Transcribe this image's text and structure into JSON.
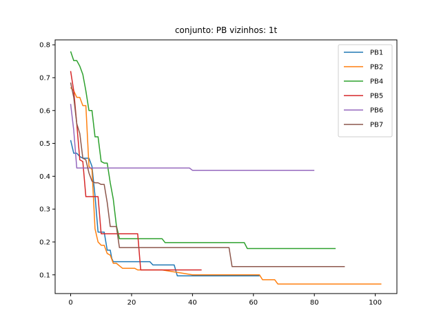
{
  "chart_data": {
    "type": "line",
    "title": "conjunto: PB vizinhos: 1t",
    "xlabel": "",
    "ylabel": "",
    "xlim": [
      -5.1,
      107.1
    ],
    "ylim": [
      0.043,
      0.815
    ],
    "xticks": [
      0,
      20,
      40,
      60,
      80,
      100
    ],
    "yticks": [
      0.1,
      0.2,
      0.3,
      0.4,
      0.5,
      0.6,
      0.7,
      0.8
    ],
    "ytick_labels": [
      "0.1",
      "0.2",
      "0.3",
      "0.4",
      "0.5",
      "0.6",
      "0.7",
      "0.8"
    ],
    "xtick_labels": [
      "0",
      "20",
      "40",
      "60",
      "80",
      "100"
    ],
    "grid": false,
    "legend_position": "top-right",
    "series": [
      {
        "name": "PB1",
        "color": "#1f77b4",
        "points": [
          [
            0,
            0.51
          ],
          [
            1,
            0.47
          ],
          [
            2,
            0.47
          ],
          [
            3,
            0.46
          ],
          [
            4,
            0.455
          ],
          [
            5,
            0.455
          ],
          [
            6,
            0.455
          ],
          [
            7,
            0.43
          ],
          [
            8,
            0.34
          ],
          [
            9,
            0.23
          ],
          [
            10,
            0.23
          ],
          [
            11,
            0.23
          ],
          [
            12,
            0.175
          ],
          [
            13,
            0.175
          ],
          [
            13.5,
            0.15
          ],
          [
            14,
            0.14
          ],
          [
            20,
            0.14
          ],
          [
            26,
            0.14
          ],
          [
            27,
            0.13
          ],
          [
            34,
            0.13
          ],
          [
            35,
            0.097
          ],
          [
            45,
            0.097
          ],
          [
            62,
            0.097
          ]
        ]
      },
      {
        "name": "PB2",
        "color": "#ff7f0e",
        "points": [
          [
            0,
            0.67
          ],
          [
            1,
            0.66
          ],
          [
            2,
            0.64
          ],
          [
            3,
            0.64
          ],
          [
            4,
            0.615
          ],
          [
            5,
            0.615
          ],
          [
            6,
            0.43
          ],
          [
            7,
            0.42
          ],
          [
            8,
            0.24
          ],
          [
            9,
            0.2
          ],
          [
            10,
            0.19
          ],
          [
            11,
            0.19
          ],
          [
            12,
            0.165
          ],
          [
            13,
            0.16
          ],
          [
            14,
            0.135
          ],
          [
            15,
            0.135
          ],
          [
            17,
            0.12
          ],
          [
            21,
            0.12
          ],
          [
            22,
            0.115
          ],
          [
            30,
            0.115
          ],
          [
            40,
            0.1
          ],
          [
            50,
            0.1
          ],
          [
            62,
            0.1
          ],
          [
            63,
            0.085
          ],
          [
            67,
            0.085
          ],
          [
            68,
            0.072
          ],
          [
            102,
            0.072
          ]
        ]
      },
      {
        "name": "PB4",
        "color": "#2ca02c",
        "points": [
          [
            0,
            0.78
          ],
          [
            1,
            0.752
          ],
          [
            2,
            0.752
          ],
          [
            3,
            0.735
          ],
          [
            4,
            0.71
          ],
          [
            5,
            0.66
          ],
          [
            6,
            0.6
          ],
          [
            7,
            0.6
          ],
          [
            8,
            0.52
          ],
          [
            9,
            0.52
          ],
          [
            10,
            0.445
          ],
          [
            11,
            0.44
          ],
          [
            12,
            0.44
          ],
          [
            13,
            0.38
          ],
          [
            14,
            0.33
          ],
          [
            15,
            0.25
          ],
          [
            16,
            0.21
          ],
          [
            22,
            0.21
          ],
          [
            28,
            0.21
          ],
          [
            30,
            0.21
          ],
          [
            31,
            0.198
          ],
          [
            40,
            0.198
          ],
          [
            50,
            0.198
          ],
          [
            57,
            0.198
          ],
          [
            58,
            0.18
          ],
          [
            87,
            0.18
          ]
        ]
      },
      {
        "name": "PB5",
        "color": "#d62728",
        "points": [
          [
            0,
            0.72
          ],
          [
            1,
            0.66
          ],
          [
            2,
            0.56
          ],
          [
            3,
            0.45
          ],
          [
            4,
            0.445
          ],
          [
            5,
            0.338
          ],
          [
            6,
            0.338
          ],
          [
            7,
            0.338
          ],
          [
            8,
            0.338
          ],
          [
            9,
            0.338
          ],
          [
            10,
            0.225
          ],
          [
            11,
            0.225
          ],
          [
            15,
            0.225
          ],
          [
            20,
            0.225
          ],
          [
            22,
            0.225
          ],
          [
            23,
            0.115
          ],
          [
            30,
            0.115
          ],
          [
            40,
            0.115
          ],
          [
            43,
            0.115
          ]
        ]
      },
      {
        "name": "PB6",
        "color": "#9467bd",
        "points": [
          [
            0,
            0.62
          ],
          [
            1,
            0.54
          ],
          [
            2,
            0.425
          ],
          [
            3,
            0.425
          ],
          [
            10,
            0.425
          ],
          [
            20,
            0.425
          ],
          [
            30,
            0.425
          ],
          [
            39,
            0.425
          ],
          [
            40,
            0.418
          ],
          [
            50,
            0.418
          ],
          [
            60,
            0.418
          ],
          [
            80,
            0.418
          ]
        ]
      },
      {
        "name": "PB7",
        "color": "#8c564b",
        "points": [
          [
            0,
            0.685
          ],
          [
            1,
            0.64
          ],
          [
            2,
            0.56
          ],
          [
            3,
            0.53
          ],
          [
            4,
            0.455
          ],
          [
            5,
            0.45
          ],
          [
            6,
            0.41
          ],
          [
            7,
            0.385
          ],
          [
            8,
            0.38
          ],
          [
            9,
            0.38
          ],
          [
            10,
            0.375
          ],
          [
            11,
            0.375
          ],
          [
            12,
            0.32
          ],
          [
            13,
            0.247
          ],
          [
            14,
            0.247
          ],
          [
            15,
            0.247
          ],
          [
            16,
            0.183
          ],
          [
            20,
            0.183
          ],
          [
            30,
            0.183
          ],
          [
            40,
            0.183
          ],
          [
            52,
            0.183
          ],
          [
            53,
            0.125
          ],
          [
            60,
            0.125
          ],
          [
            90,
            0.125
          ]
        ]
      }
    ]
  }
}
